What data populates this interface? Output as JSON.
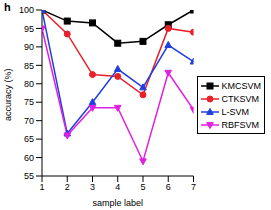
{
  "chart_data": {
    "type": "line",
    "title": "h",
    "x_label": "sample label",
    "y_label": "accuracy (%)",
    "x": [
      1,
      2,
      3,
      4,
      5,
      6,
      7
    ],
    "xlim": [
      1,
      7
    ],
    "xticks": [
      1,
      2,
      3,
      4,
      5,
      6,
      7
    ],
    "ylim": [
      55,
      100
    ],
    "yticks": [
      55,
      60,
      65,
      70,
      75,
      80,
      85,
      90,
      95,
      100
    ],
    "grid": false,
    "legend": "right",
    "series": [
      {
        "name": "KMCSVM",
        "color": "#000000",
        "marker": "square",
        "values": [
          100,
          97,
          96.5,
          91,
          91.5,
          96,
          100
        ]
      },
      {
        "name": "CTKSVM",
        "color": "#e8202a",
        "marker": "circle",
        "values": [
          100,
          93.5,
          82.5,
          82,
          77,
          95,
          94
        ]
      },
      {
        "name": "L-SVM",
        "color": "#1f3fe0",
        "marker": "triangle_up",
        "values": [
          100,
          66.5,
          75,
          84,
          79,
          90.5,
          86
        ]
      },
      {
        "name": "RBFSVM",
        "color": "#e020e0",
        "marker": "triangle_down",
        "values": [
          95,
          66,
          73.5,
          73.5,
          59,
          83,
          73
        ]
      }
    ]
  }
}
